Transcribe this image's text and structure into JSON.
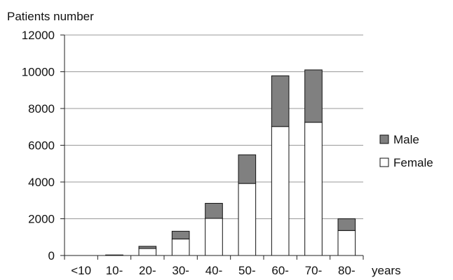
{
  "chart_data": {
    "type": "bar",
    "stacked": true,
    "title": "",
    "ylabel": "Patients number",
    "xlabel": "years",
    "ylim": [
      0,
      12000
    ],
    "yticks": [
      "0",
      "2000",
      "4000",
      "6000",
      "8000",
      "10000",
      "12000"
    ],
    "grid": true,
    "legend_position": "right",
    "categories": [
      "<10",
      "10-",
      "20-",
      "30-",
      "40-",
      "50-",
      "60-",
      "70-",
      "80-"
    ],
    "series": [
      {
        "name": "Female",
        "color": "#ffffff",
        "values": [
          0,
          20,
          380,
          900,
          2020,
          3920,
          7020,
          7250,
          1360
        ]
      },
      {
        "name": "Male",
        "color": "#808080",
        "values": [
          0,
          10,
          120,
          420,
          820,
          1560,
          2760,
          2850,
          640
        ]
      }
    ],
    "legend": [
      "Male",
      "Female"
    ]
  }
}
